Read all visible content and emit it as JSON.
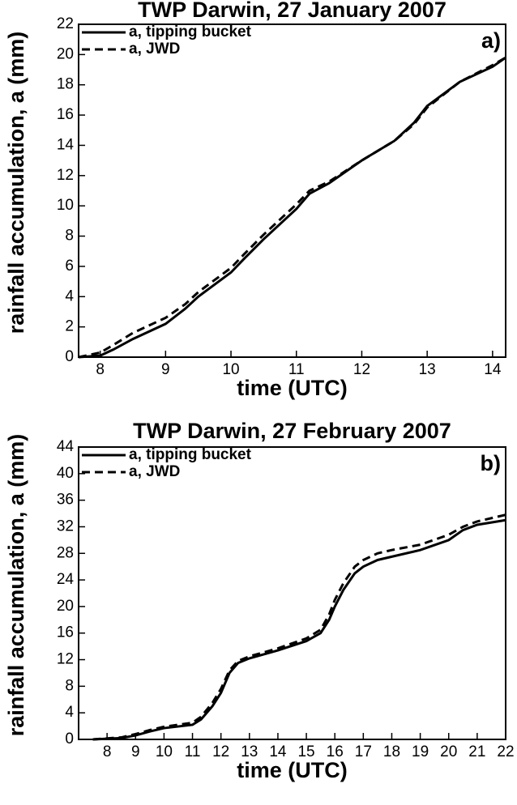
{
  "chart_data": [
    {
      "type": "line",
      "title": "TWP Darwin, 27 January 2007",
      "panel_label": "a)",
      "xlabel": "time (UTC)",
      "ylabel": "rainfall accumulation, a (mm)",
      "x": [
        7.67,
        8,
        8.2,
        8.5,
        9,
        9.3,
        9.5,
        10,
        10.2,
        10.5,
        11,
        11.2,
        11.5,
        12,
        12.5,
        12.8,
        13,
        13.5,
        14,
        14.2
      ],
      "series": [
        {
          "name": "a, tipping bucket",
          "color": "#000000",
          "dashed": false,
          "values": [
            0,
            0.1,
            0.5,
            1.2,
            2.2,
            3.2,
            4,
            5.6,
            6.5,
            7.8,
            9.8,
            10.8,
            11.5,
            13,
            14.3,
            15.5,
            16.6,
            18.2,
            19.2,
            19.8
          ]
        },
        {
          "name": "a, JWD",
          "color": "#000000",
          "dashed": true,
          "values": [
            0,
            0.3,
            0.8,
            1.6,
            2.6,
            3.5,
            4.3,
            5.9,
            6.8,
            8.1,
            10.1,
            11,
            11.6,
            13,
            14.3,
            15.4,
            16.5,
            18.2,
            19.3,
            19.8
          ]
        }
      ],
      "xlim": [
        7.67,
        14.2
      ],
      "xticks": [
        8,
        9,
        10,
        11,
        12,
        13,
        14
      ],
      "ylim": [
        0,
        22
      ],
      "yticks": [
        0,
        2,
        4,
        6,
        8,
        10,
        12,
        14,
        16,
        18,
        20,
        22
      ],
      "legend": "upper left"
    },
    {
      "type": "line",
      "title": "TWP Darwin, 27 February 2007",
      "panel_label": "b)",
      "xlabel": "time (UTC)",
      "ylabel": "rainfall accumulation, a (mm)",
      "x": [
        7.5,
        8.5,
        9,
        9.5,
        10,
        11,
        11.3,
        11.7,
        12,
        12.3,
        12.6,
        13,
        14,
        15,
        15.5,
        15.8,
        16,
        16.3,
        16.7,
        17,
        17.5,
        18,
        19,
        20,
        20.5,
        21,
        22
      ],
      "series": [
        {
          "name": "a, tipping bucket",
          "color": "#000000",
          "dashed": false,
          "values": [
            0,
            0.2,
            0.6,
            1.2,
            1.7,
            2.2,
            3,
            5,
            7,
            10,
            11.5,
            12.2,
            13.4,
            14.8,
            16,
            18,
            20,
            22.5,
            25,
            26,
            27,
            27.5,
            28.5,
            30,
            31.5,
            32.3,
            33
          ]
        },
        {
          "name": "a, JWD",
          "color": "#000000",
          "dashed": true,
          "values": [
            0,
            0.3,
            0.8,
            1.4,
            1.9,
            2.5,
            3.4,
            5.5,
            7.6,
            10.4,
            11.8,
            12.5,
            13.7,
            15.2,
            16.5,
            18.8,
            21,
            23.5,
            26,
            27,
            28,
            28.5,
            29.3,
            30.8,
            32,
            32.8,
            33.8
          ]
        }
      ],
      "xlim": [
        7,
        22
      ],
      "xticks": [
        8,
        9,
        10,
        11,
        12,
        13,
        14,
        15,
        16,
        17,
        18,
        19,
        20,
        21,
        22
      ],
      "ylim": [
        0,
        44
      ],
      "yticks": [
        0,
        4,
        8,
        12,
        16,
        20,
        24,
        28,
        32,
        36,
        40,
        44
      ],
      "legend": "upper left"
    }
  ]
}
